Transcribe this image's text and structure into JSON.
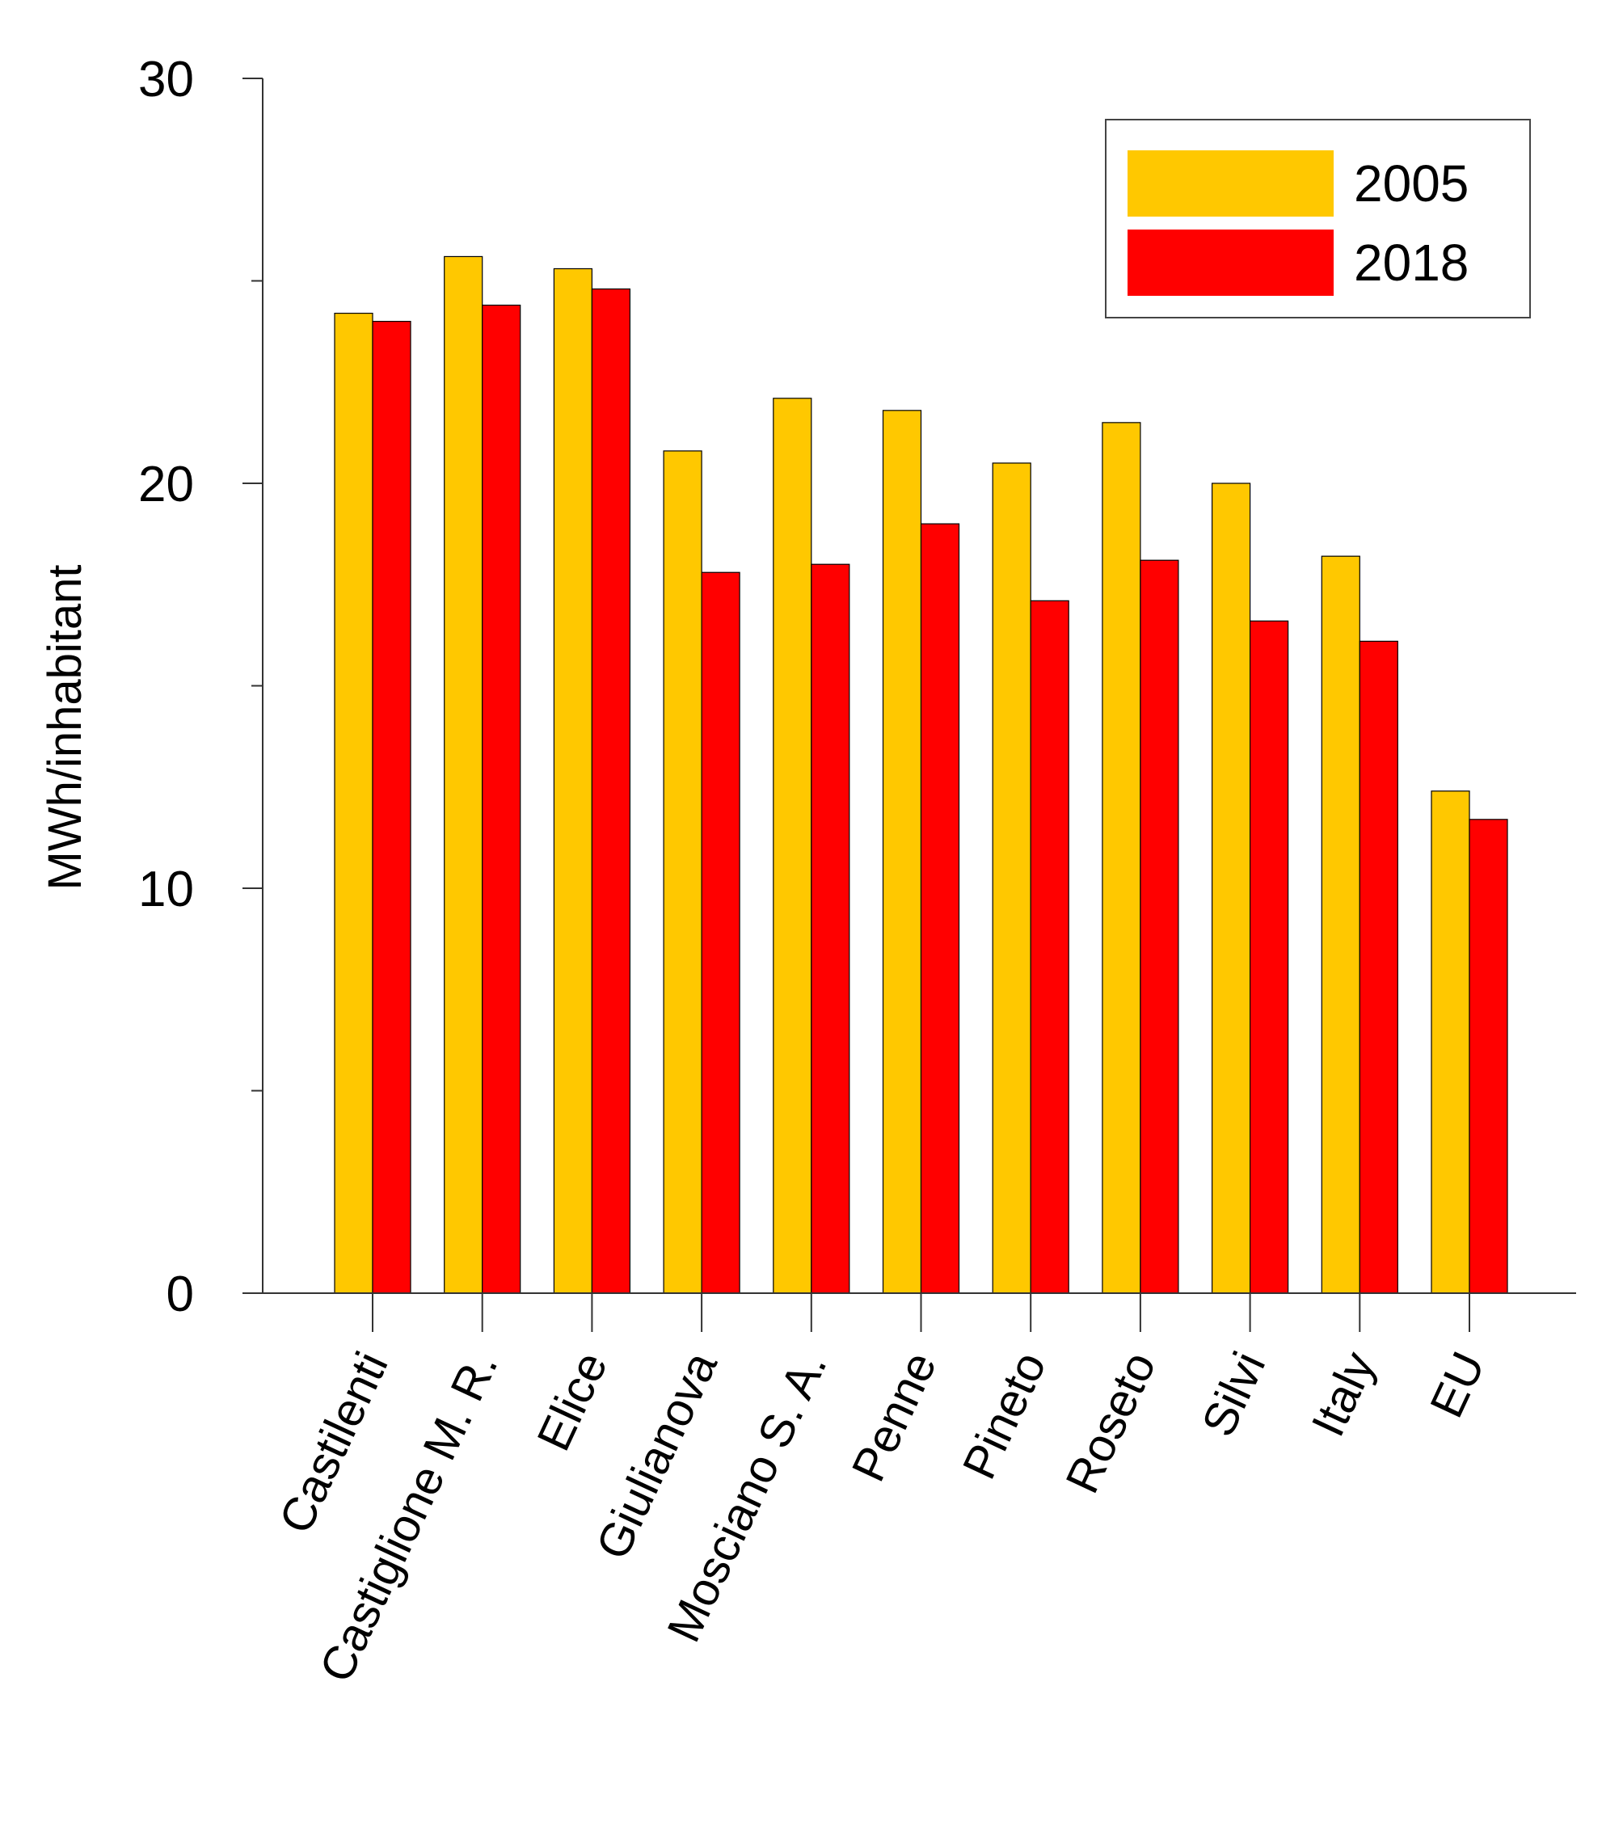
{
  "chart_data": {
    "type": "bar",
    "title": "",
    "xlabel": "",
    "ylabel": "MWh/inhabitant",
    "ylim": [
      0,
      30
    ],
    "yticks": [
      0,
      10,
      20,
      30
    ],
    "yticks_minor": [
      5,
      15,
      25
    ],
    "grid": false,
    "legend_position": "top-right",
    "categories": [
      "Castilenti",
      "Castiglione M. R.",
      "Elice",
      "Giulianova",
      "Mosciano S. A.",
      "Penne",
      "Pineto",
      "Roseto",
      "Silvi",
      "Italy",
      "EU"
    ],
    "series": [
      {
        "name": "2005",
        "color": "#FFC800",
        "values": [
          24.2,
          25.6,
          25.3,
          20.8,
          22.1,
          21.8,
          20.5,
          21.5,
          20.0,
          18.2,
          12.4
        ]
      },
      {
        "name": "2018",
        "color": "#FF0000",
        "values": [
          24.0,
          24.4,
          24.8,
          17.8,
          18.0,
          19.0,
          17.1,
          18.1,
          16.6,
          16.1,
          11.7
        ]
      }
    ]
  }
}
